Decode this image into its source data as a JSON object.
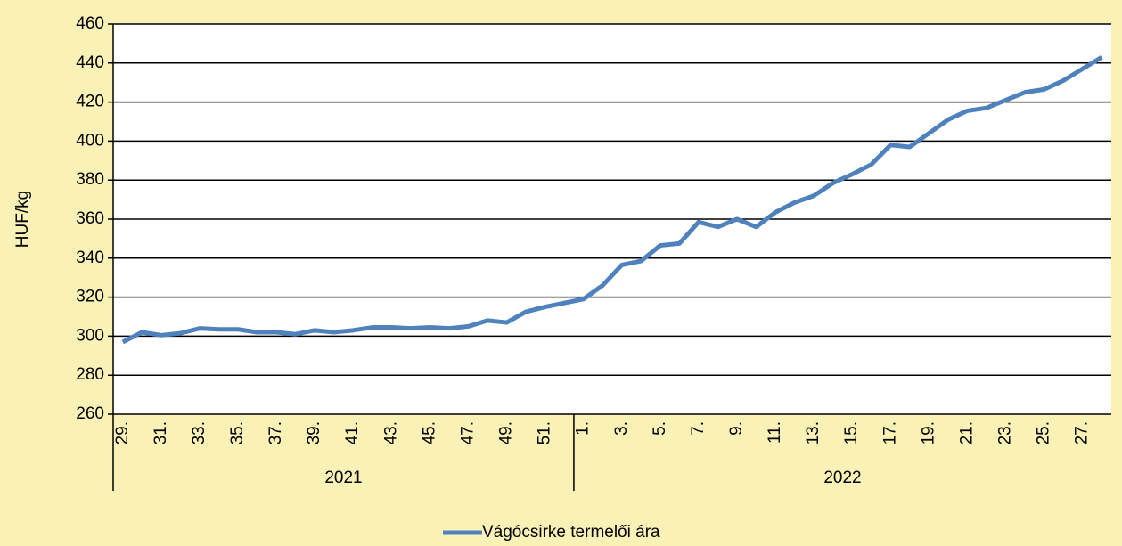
{
  "chart_data": {
    "type": "line",
    "y_label": "HUF/kg",
    "categories": [
      "29.",
      null,
      "31.",
      null,
      "33.",
      null,
      "35.",
      null,
      "37.",
      null,
      "39.",
      null,
      "41.",
      null,
      "43.",
      null,
      "45.",
      null,
      "47.",
      null,
      "49.",
      null,
      "51.",
      null,
      "1.",
      null,
      "3.",
      null,
      "5.",
      null,
      "7.",
      null,
      "9.",
      null,
      "11.",
      null,
      "13.",
      null,
      "15.",
      null,
      "17.",
      null,
      "19.",
      null,
      "21.",
      null,
      "23.",
      null,
      "25.",
      null,
      "27.",
      null
    ],
    "groups": [
      {
        "label": "2021",
        "size": 24
      },
      {
        "label": "2022",
        "size": 28
      }
    ],
    "series": [
      {
        "name": "Vágócsirke termelői ára",
        "color": "#4f81bd",
        "values": [
          297,
          302,
          300.5,
          301.5,
          304,
          303.5,
          303.5,
          302,
          302,
          301,
          303,
          302,
          303,
          304.5,
          304.5,
          304,
          304.5,
          304,
          305,
          308,
          307,
          312.5,
          315,
          317,
          319,
          326,
          336.5,
          338.5,
          346.5,
          347.5,
          358.5,
          356,
          360,
          356,
          363.5,
          368.5,
          372,
          378.5,
          383,
          388,
          398,
          397,
          404,
          411,
          415.5,
          417,
          421,
          425,
          426.5,
          431,
          437,
          443
        ]
      }
    ],
    "ylim": [
      260,
      460
    ],
    "yticks": [
      260,
      280,
      300,
      320,
      340,
      360,
      380,
      400,
      420,
      440,
      460
    ],
    "grid": true,
    "legend": "bottom"
  }
}
